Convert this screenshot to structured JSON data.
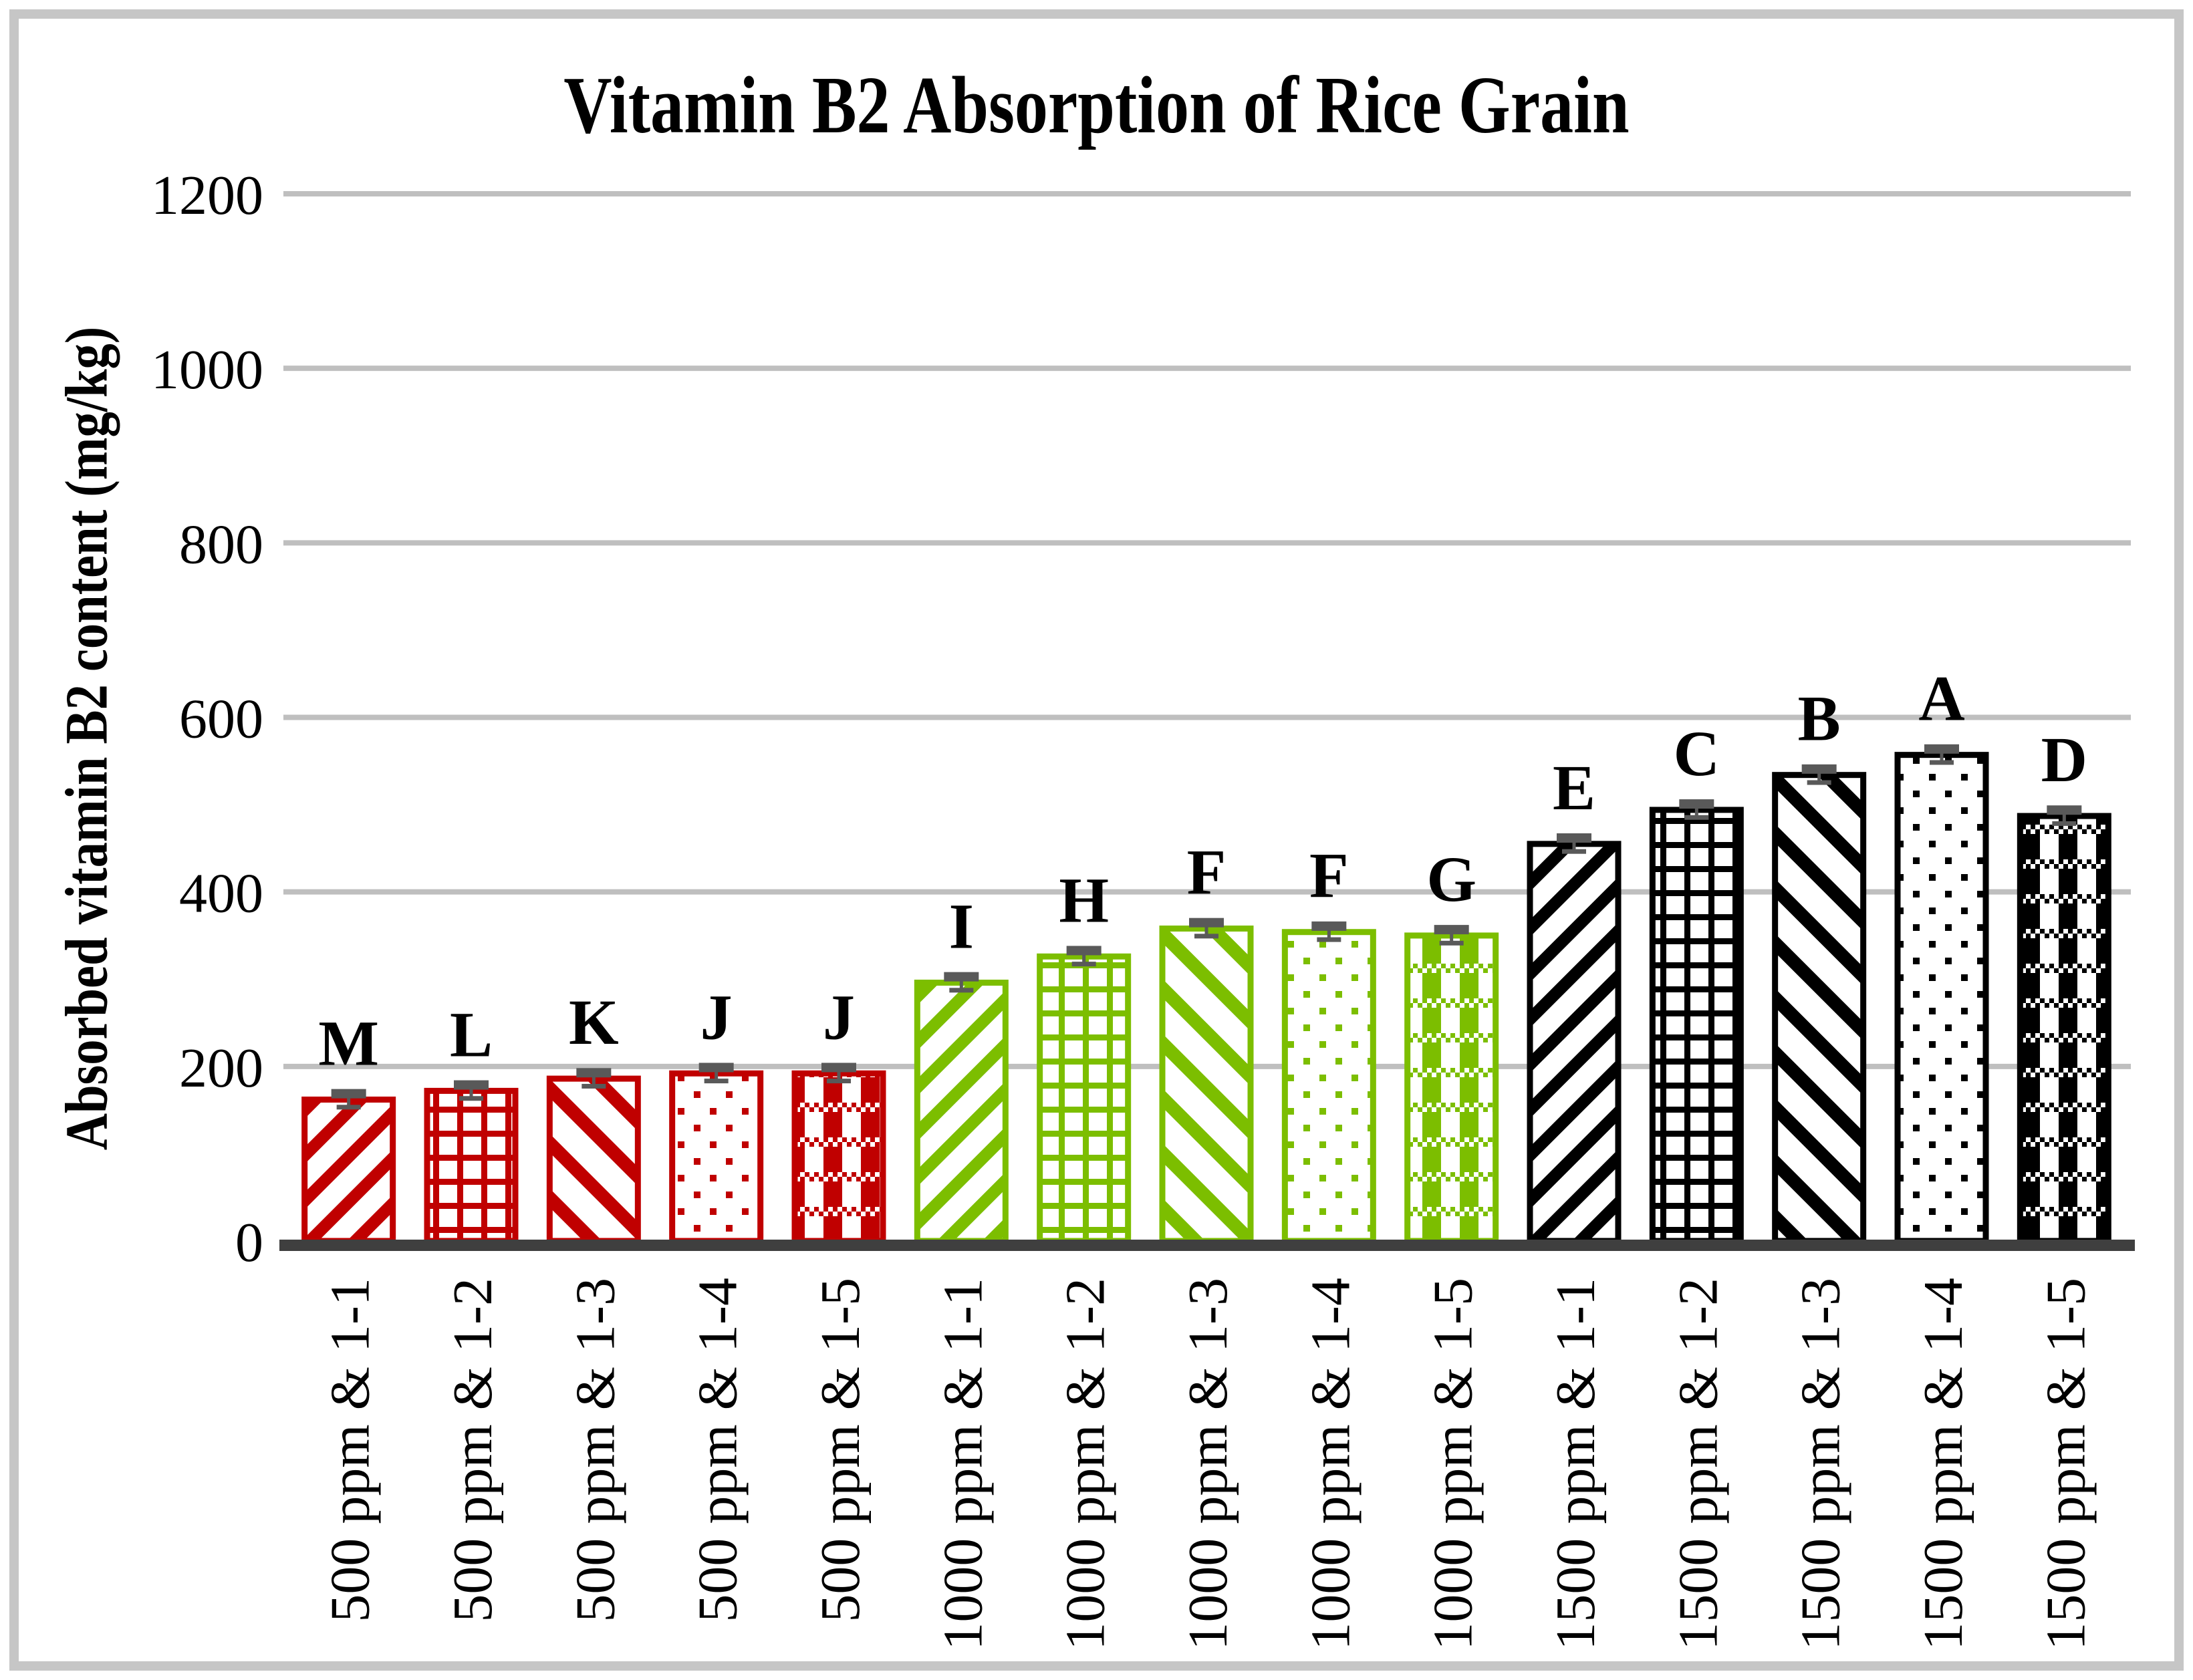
{
  "chart_data": {
    "type": "bar",
    "title": "Vitamin B2 Absorption of Rice Grain",
    "xlabel": "",
    "ylabel": "Absorbed vitamin B2 content (mg/kg)",
    "ylim": [
      0,
      1200
    ],
    "yticks": [
      0,
      200,
      400,
      600,
      800,
      1000,
      1200
    ],
    "grid": "horizontal",
    "legend": "none",
    "categories": [
      "500 ppm & 1-1",
      "500 ppm & 1-2",
      "500 ppm & 1-3",
      "500 ppm & 1-4",
      "500 ppm & 1-5",
      "1000 ppm & 1-1",
      "1000 ppm & 1-2",
      "1000 ppm & 1-3",
      "1000 ppm & 1-4",
      "1000 ppm & 1-5",
      "1500 ppm & 1-1",
      "1500 ppm & 1-2",
      "1500 ppm & 1-3",
      "1500 ppm & 1-4",
      "1500 ppm & 1-5"
    ],
    "values": [
      162,
      172,
      186,
      192,
      192,
      296,
      326,
      358,
      354,
      350,
      455,
      494,
      534,
      557,
      487
    ],
    "sig_letters": [
      "M",
      "L",
      "K",
      "J",
      "J",
      "I",
      "H",
      "F",
      "F",
      "G",
      "E",
      "C",
      "B",
      "A",
      "D"
    ],
    "error_bar_value": 6,
    "groups": [
      {
        "label": "500 ppm",
        "color": "#C00000",
        "color_name": "dark-red"
      },
      {
        "label": "1000 ppm",
        "color": "#7CBE00",
        "color_name": "yellow-green"
      },
      {
        "label": "1500 ppm",
        "color": "#000000",
        "color_name": "black"
      }
    ],
    "bars_per_group": 5,
    "pattern_cycle": [
      "diagonal-up-stripes",
      "square-grid",
      "diagonal-down-stripes",
      "dots",
      "plaid-check"
    ]
  },
  "style_colors": {
    "gridline": "#BFBFBF",
    "baseline": "#3F3F3F",
    "error_bar": "#595959",
    "frame_border": "#C6C6C6",
    "background": "#FFFFFF"
  }
}
